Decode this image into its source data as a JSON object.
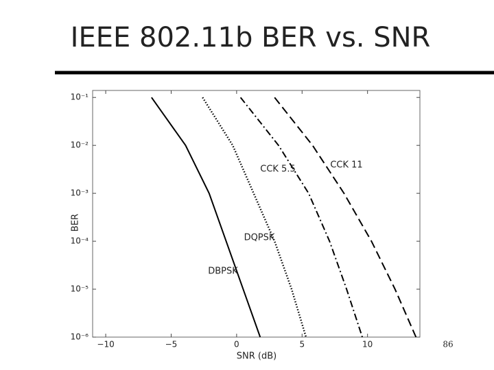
{
  "slide_title": "IEEE 802.11b BER vs. SNR",
  "page_number": "86",
  "chart_data": {
    "type": "line",
    "x_label": "SNR (dB)",
    "y_label": "BER",
    "xlim": [
      -11,
      14
    ],
    "ylim": [
      1e-06,
      0.14
    ],
    "log_y": true,
    "grid": false,
    "xticks": [
      {
        "value": -10,
        "label": "−10"
      },
      {
        "value": -5,
        "label": "−5"
      },
      0,
      5,
      10
    ],
    "yticks": [
      {
        "value": 0.1,
        "label": "10⁻¹"
      },
      {
        "value": 0.01,
        "label": "10⁻²"
      },
      {
        "value": 0.001,
        "label": "10⁻³"
      },
      {
        "value": 0.0001,
        "label": "10⁻⁴"
      },
      {
        "value": 1e-05,
        "label": "10⁻⁵"
      },
      {
        "value": 1e-06,
        "label": "10⁻⁶"
      }
    ],
    "series": [
      {
        "name": "DBPSK",
        "color": "#000000",
        "style": "solid",
        "x": [
          -6.5,
          -3.9,
          -2.1,
          -0.8,
          0.5,
          1.8
        ],
        "values": [
          0.1,
          0.01,
          0.001,
          0.0001,
          1e-05,
          1e-06
        ]
      },
      {
        "name": "DQPSK",
        "color": "#000000",
        "style": "dotted",
        "x": [
          -2.6,
          -0.3,
          1.3,
          2.9,
          4.2,
          5.3
        ],
        "values": [
          0.1,
          0.01,
          0.001,
          0.0001,
          1e-05,
          1e-06
        ]
      },
      {
        "name": "CCK 5.5",
        "color": "#000000",
        "style": "dashdot",
        "x": [
          0.3,
          3.2,
          5.5,
          7.1,
          8.4,
          9.6
        ],
        "values": [
          0.1,
          0.01,
          0.001,
          0.0001,
          1e-05,
          1e-06
        ]
      },
      {
        "name": "CCK 11",
        "color": "#000000",
        "style": "dashed",
        "x": [
          2.9,
          5.8,
          8.2,
          10.3,
          12.1,
          13.7
        ],
        "values": [
          0.1,
          0.01,
          0.001,
          0.0001,
          1e-05,
          1e-06
        ]
      }
    ]
  }
}
